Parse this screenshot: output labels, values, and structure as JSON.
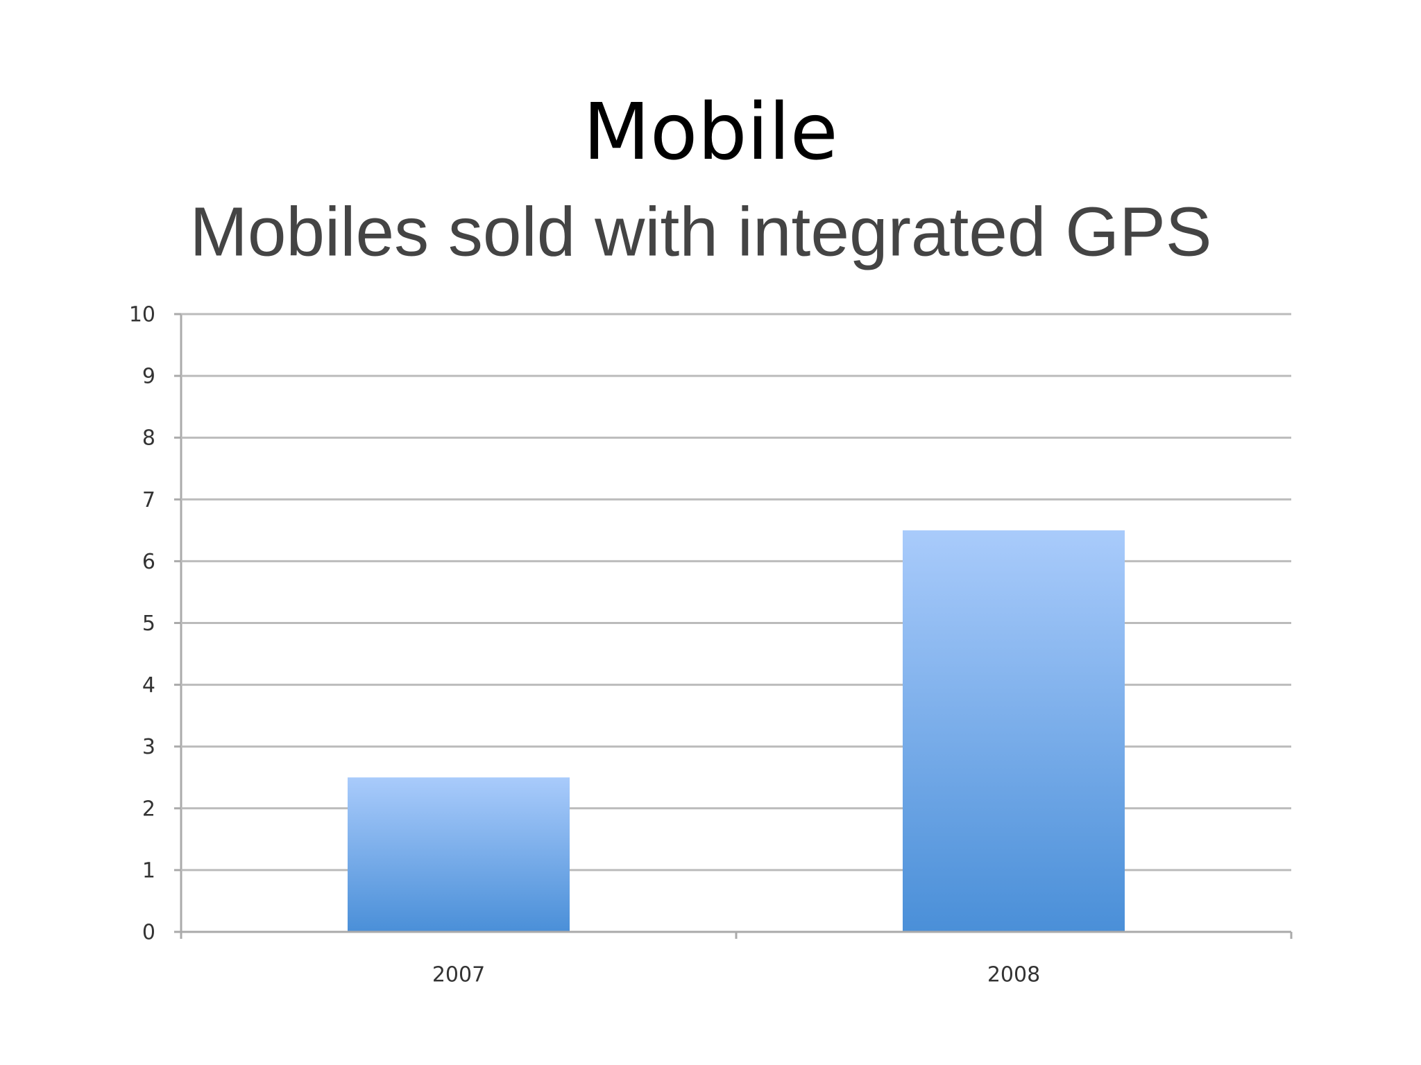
{
  "slide": {
    "title": "Mobile"
  },
  "chart_data": {
    "type": "bar",
    "title": "Mobiles sold with integrated GPS",
    "categories": [
      "2007",
      "2008"
    ],
    "values": [
      2.5,
      6.5
    ],
    "color": "#4a8fd8",
    "ylim": [
      0,
      10
    ],
    "yticks": [
      0,
      1,
      2,
      3,
      4,
      5,
      6,
      7,
      8,
      9,
      10
    ],
    "grid": true
  }
}
